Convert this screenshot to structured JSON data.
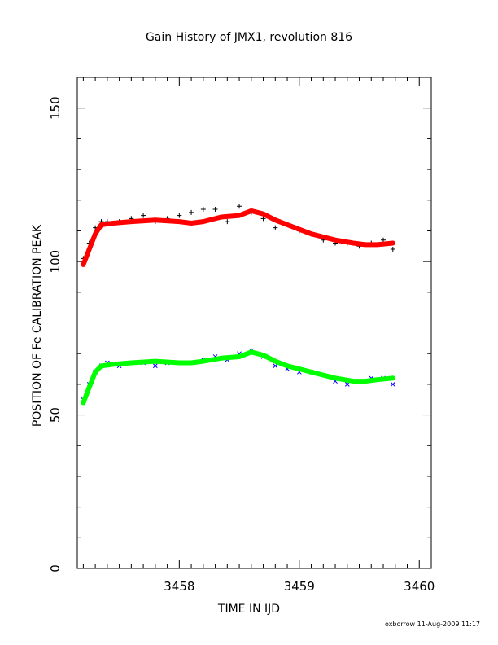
{
  "title": "Gain History of JMX1, revolution 816",
  "footer": "oxborrow 11-Aug-2009 11:17",
  "chart_data": {
    "type": "scatter",
    "title": "Gain History of JMX1, revolution 816",
    "xlabel": "TIME IN IJD",
    "ylabel": "POSITION OF Fe CALIBRATION PEAK",
    "xlim": [
      3457.15,
      3460.1
    ],
    "ylim": [
      0,
      160
    ],
    "xticks": [
      3458,
      3459,
      3460
    ],
    "xtick_labels": [
      "3458",
      "3459",
      "3460"
    ],
    "yticks": [
      0,
      50,
      100,
      150
    ],
    "ytick_labels": [
      "0",
      "50",
      "100",
      "150"
    ],
    "grid": false,
    "legend": "none",
    "series": [
      {
        "kind": "markers",
        "marker": "+",
        "color": "#000000",
        "x": [
          3457.2,
          3457.25,
          3457.3,
          3457.35,
          3457.4,
          3457.5,
          3457.6,
          3457.7,
          3457.8,
          3457.9,
          3458.0,
          3458.1,
          3458.2,
          3458.3,
          3458.4,
          3458.5,
          3458.6,
          3458.7,
          3458.8,
          3458.9,
          3459.0,
          3459.1,
          3459.2,
          3459.3,
          3459.4,
          3459.5,
          3459.6,
          3459.7,
          3459.78
        ],
        "y": [
          101,
          106,
          111,
          113,
          113,
          113,
          114,
          115,
          113,
          114,
          115,
          116,
          117,
          117,
          113,
          118,
          116,
          114,
          111,
          112,
          110,
          109,
          107,
          106,
          106,
          105,
          106,
          107,
          104
        ]
      },
      {
        "kind": "markers",
        "marker": "x",
        "color": "#0000ff",
        "x": [
          3457.2,
          3457.25,
          3457.3,
          3457.35,
          3457.4,
          3457.5,
          3457.6,
          3457.7,
          3457.8,
          3457.9,
          3458.0,
          3458.1,
          3458.2,
          3458.3,
          3458.4,
          3458.5,
          3458.6,
          3458.7,
          3458.8,
          3458.9,
          3459.0,
          3459.1,
          3459.2,
          3459.3,
          3459.4,
          3459.5,
          3459.6,
          3459.7,
          3459.78
        ],
        "y": [
          55,
          60,
          64,
          66,
          67,
          66,
          67,
          67,
          66,
          67,
          67,
          67,
          68,
          69,
          68,
          70,
          71,
          69,
          66,
          65,
          64,
          64,
          63,
          61,
          60,
          61,
          62,
          62,
          60
        ]
      },
      {
        "kind": "line",
        "color": "#ff0000",
        "x": [
          3457.2,
          3457.25,
          3457.3,
          3457.35,
          3457.45,
          3457.6,
          3457.8,
          3458.0,
          3458.1,
          3458.2,
          3458.35,
          3458.5,
          3458.6,
          3458.7,
          3458.8,
          3458.9,
          3459.0,
          3459.1,
          3459.2,
          3459.3,
          3459.45,
          3459.55,
          3459.65,
          3459.78
        ],
        "y": [
          99,
          104,
          109,
          112,
          112.5,
          113,
          113.5,
          113,
          112.5,
          113,
          114.5,
          115,
          116.5,
          115.5,
          113.5,
          112,
          110.5,
          109,
          108,
          107,
          106,
          105.5,
          105.5,
          106
        ]
      },
      {
        "kind": "line",
        "color": "#00ff00",
        "x": [
          3457.2,
          3457.25,
          3457.3,
          3457.35,
          3457.45,
          3457.6,
          3457.8,
          3458.0,
          3458.1,
          3458.2,
          3458.35,
          3458.5,
          3458.6,
          3458.7,
          3458.8,
          3458.9,
          3459.0,
          3459.1,
          3459.2,
          3459.3,
          3459.45,
          3459.55,
          3459.65,
          3459.78
        ],
        "y": [
          54,
          59,
          64,
          66,
          66.5,
          67,
          67.5,
          67,
          67,
          67.5,
          68.5,
          69,
          70.5,
          69.5,
          67.5,
          66,
          65,
          64,
          63,
          62,
          61,
          61,
          61.5,
          62
        ]
      }
    ]
  }
}
